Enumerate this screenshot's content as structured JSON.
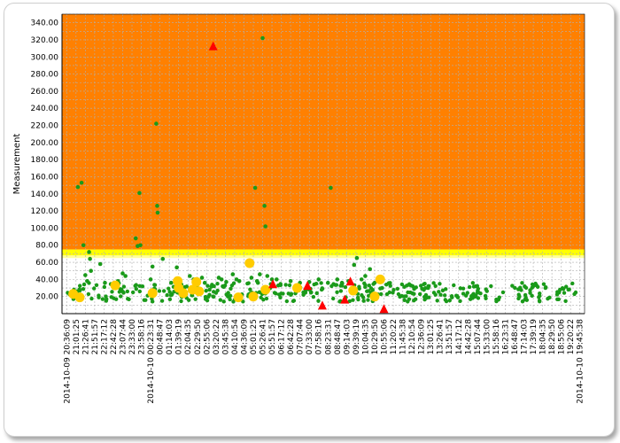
{
  "chart_data": {
    "type": "scatter",
    "title": "",
    "xlabel": "",
    "ylabel": "Measurement",
    "ylim": [
      0,
      350
    ],
    "grid": true,
    "legend": "none",
    "y_ticks": [
      "20.00",
      "40.00",
      "60.00",
      "80.00",
      "100.00",
      "120.00",
      "140.00",
      "160.00",
      "180.00",
      "200.00",
      "220.00",
      "240.00",
      "260.00",
      "280.00",
      "300.00",
      "320.00",
      "340.00"
    ],
    "x_ticks": [
      "2014-10-09 20:36:09",
      "21:01:25",
      "21:26:41",
      "21:51:57",
      "22:17:12",
      "22:42:28",
      "23:07:44",
      "23:33:00",
      "23:58:16",
      "2014-10-10 00:23:31",
      "00:48:47",
      "01:14:03",
      "01:39:19",
      "02:04:35",
      "02:29:50",
      "02:55:06",
      "03:20:22",
      "03:45:38",
      "04:10:54",
      "04:36:09",
      "05:01:25",
      "05:26:41",
      "05:51:57",
      "06:17:12",
      "06:42:28",
      "07:07:44",
      "07:33:00",
      "07:58:16",
      "08:23:31",
      "08:48:47",
      "09:14:03",
      "09:39:19",
      "10:04:35",
      "10:29:50",
      "10:55:06",
      "11:20:22",
      "11:45:38",
      "12:10:54",
      "12:36:09",
      "13:01:25",
      "13:26:41",
      "13:51:57",
      "14:17:12",
      "14:42:28",
      "15:07:44",
      "15:33:00",
      "15:58:16",
      "16:23:31",
      "16:48:47",
      "17:14:03",
      "17:39:19",
      "18:04:35",
      "18:29:50",
      "18:55:06",
      "19:20:22",
      "2014-10-10 19:45:38"
    ],
    "bands": [
      {
        "from": 75,
        "to": 350,
        "color": "#ff8000"
      },
      {
        "from": 68,
        "to": 75,
        "color": "#ffff00"
      },
      {
        "from": 65,
        "to": 68,
        "color": "#ffff99"
      }
    ],
    "series": [
      {
        "marker": "dot",
        "color": "#1a9a1a",
        "points": [
          [
            1.2,
            148
          ],
          [
            1.6,
            153
          ],
          [
            1.8,
            80
          ],
          [
            2.0,
            45
          ],
          [
            2.4,
            72
          ],
          [
            2.5,
            64
          ],
          [
            2.6,
            50
          ],
          [
            3.6,
            58
          ],
          [
            2.2,
            38
          ],
          [
            4.1,
            36
          ],
          [
            6.0,
            47
          ],
          [
            5.5,
            38
          ],
          [
            6.3,
            44
          ],
          [
            7.4,
            88
          ],
          [
            7.6,
            79
          ],
          [
            7.8,
            141
          ],
          [
            7.9,
            80
          ],
          [
            9.0,
            40
          ],
          [
            9.2,
            55
          ],
          [
            9.6,
            222
          ],
          [
            9.7,
            126
          ],
          [
            9.75,
            118
          ],
          [
            10.3,
            64
          ],
          [
            11.8,
            54
          ],
          [
            11.2,
            36
          ],
          [
            13.2,
            44
          ],
          [
            13.6,
            40
          ],
          [
            14.5,
            42
          ],
          [
            14.8,
            36
          ],
          [
            16.3,
            42
          ],
          [
            16.6,
            40
          ],
          [
            17.1,
            37
          ],
          [
            17.8,
            46
          ],
          [
            18.2,
            40
          ],
          [
            18.5,
            38
          ],
          [
            19.8,
            42
          ],
          [
            20.2,
            147
          ],
          [
            20.4,
            38
          ],
          [
            20.5,
            36
          ],
          [
            20.7,
            46
          ],
          [
            21.0,
            322
          ],
          [
            21.2,
            126
          ],
          [
            21.3,
            102
          ],
          [
            21.5,
            44
          ],
          [
            22.0,
            40
          ],
          [
            22.5,
            40
          ],
          [
            24.0,
            38
          ],
          [
            25.0,
            36
          ],
          [
            26.0,
            37
          ],
          [
            27.0,
            40
          ],
          [
            28.0,
            36
          ],
          [
            28.3,
            147
          ],
          [
            29.0,
            40
          ],
          [
            29.5,
            36
          ],
          [
            30.2,
            38
          ],
          [
            30.8,
            57
          ],
          [
            31.1,
            65
          ],
          [
            31.6,
            40
          ],
          [
            32.0,
            44
          ],
          [
            32.5,
            52
          ],
          [
            33.0,
            36
          ],
          [
            33.8,
            30
          ]
        ],
        "base": {
          "count": 380,
          "min": 14,
          "max": 36
        }
      },
      {
        "marker": "circle",
        "color": "#ffcc00",
        "points": [
          [
            0.7,
            23
          ],
          [
            1.4,
            19
          ],
          [
            5.2,
            33
          ],
          [
            9.2,
            24
          ],
          [
            11.9,
            38
          ],
          [
            12.0,
            30
          ],
          [
            12.5,
            24
          ],
          [
            13.5,
            28
          ],
          [
            13.9,
            37
          ],
          [
            14.2,
            26
          ],
          [
            18.4,
            19
          ],
          [
            19.6,
            59
          ],
          [
            20.0,
            20
          ],
          [
            21.3,
            28
          ],
          [
            24.7,
            30
          ],
          [
            30.7,
            27
          ],
          [
            33.0,
            20
          ],
          [
            33.6,
            40
          ]
        ]
      },
      {
        "marker": "triangle",
        "color": "#ff0000",
        "points": [
          [
            15.7,
            313
          ],
          [
            22.1,
            35
          ],
          [
            25.8,
            33
          ],
          [
            27.4,
            10
          ],
          [
            29.8,
            17
          ],
          [
            30.4,
            38
          ],
          [
            34.0,
            6
          ]
        ]
      }
    ]
  }
}
